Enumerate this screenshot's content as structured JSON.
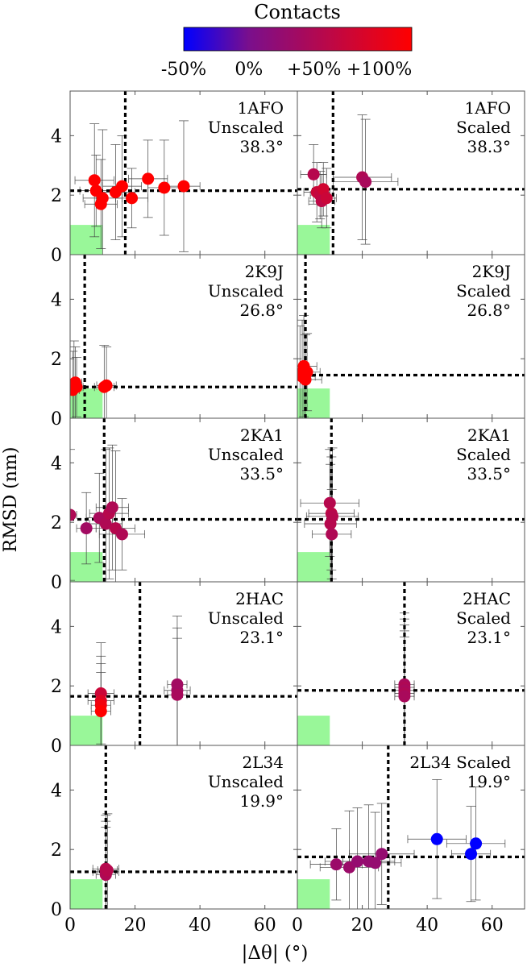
{
  "colorbar": {
    "title": "Contacts",
    "tick_labels": [
      "-50%",
      "0%",
      "+50%",
      "+100%"
    ],
    "tick_values": [
      -50,
      0,
      50,
      100
    ],
    "range": [
      -50,
      125
    ],
    "colors": [
      "#0000ff",
      "#7a0f8c",
      "#ff0000"
    ]
  },
  "axes": {
    "xlabel": "|Δθ| (°)",
    "ylabel": "RMSD (nm)",
    "x_ticks": [
      0,
      20,
      40,
      60
    ],
    "y_ticks": [
      0,
      2,
      4
    ],
    "xlim": [
      0,
      70
    ],
    "ylim": [
      0,
      5.5
    ]
  },
  "chart_data": [
    {
      "type": "scatter",
      "label": [
        "1AFO",
        "Unscaled",
        "38.3°"
      ],
      "vline": 17,
      "hline": 2.15,
      "points": [
        {
          "x": 7.5,
          "y": 2.5,
          "c": 100,
          "xe": 6,
          "ye": 1.9
        },
        {
          "x": 8,
          "y": 2.15,
          "c": 100,
          "xe": 5,
          "ye": 1.2
        },
        {
          "x": 9.5,
          "y": 1.7,
          "c": 100,
          "xe": 5,
          "ye": 1.5
        },
        {
          "x": 10,
          "y": 1.9,
          "c": 100,
          "xe": 6,
          "ye": 2.3
        },
        {
          "x": 14,
          "y": 2.1,
          "c": 100,
          "xe": 6,
          "ye": 1.6
        },
        {
          "x": 16,
          "y": 2.3,
          "c": 100,
          "xe": 6,
          "ye": 1.7
        },
        {
          "x": 19,
          "y": 1.9,
          "c": 100,
          "xe": 5,
          "ye": 1.0
        },
        {
          "x": 24,
          "y": 2.55,
          "c": 100,
          "xe": 6,
          "ye": 1.3
        },
        {
          "x": 29,
          "y": 2.25,
          "c": 100,
          "xe": 5,
          "ye": 1.6
        },
        {
          "x": 35,
          "y": 2.3,
          "c": 100,
          "xe": 5,
          "ye": 2.2
        }
      ]
    },
    {
      "type": "scatter",
      "label": [
        "1AFO",
        "Scaled",
        "38.3°"
      ],
      "vline": 11,
      "hline": 2.2,
      "points": [
        {
          "x": 5,
          "y": 2.7,
          "c": 45,
          "xe": 4,
          "ye": 1.0
        },
        {
          "x": 6,
          "y": 2.1,
          "c": 60,
          "xe": 4,
          "ye": 1.0
        },
        {
          "x": 7,
          "y": 2.0,
          "c": 55,
          "xe": 3,
          "ye": 0.8
        },
        {
          "x": 7.5,
          "y": 1.8,
          "c": 50,
          "xe": 4,
          "ye": 0.9
        },
        {
          "x": 8,
          "y": 2.2,
          "c": 65,
          "xe": 3,
          "ye": 0.9
        },
        {
          "x": 9,
          "y": 1.9,
          "c": 60,
          "xe": 3,
          "ye": 1.0
        },
        {
          "x": 20,
          "y": 2.6,
          "c": 40,
          "xe": 9,
          "ye": 2.1
        },
        {
          "x": 21,
          "y": 2.45,
          "c": 35,
          "xe": 10,
          "ye": 2.1
        }
      ]
    },
    {
      "type": "scatter",
      "label": [
        "2K9J",
        "Unscaled",
        "26.8°"
      ],
      "vline": 4.5,
      "hline": 1.05,
      "points": [
        {
          "x": 0.8,
          "y": 0.95,
          "c": 100,
          "xe": 2,
          "ye": 1.3
        },
        {
          "x": 1.2,
          "y": 1.1,
          "c": 100,
          "xe": 2,
          "ye": 1.5
        },
        {
          "x": 1.6,
          "y": 1.2,
          "c": 100,
          "xe": 2,
          "ye": 1.2
        },
        {
          "x": 2.0,
          "y": 1.05,
          "c": 100,
          "xe": 2,
          "ye": 1.0
        },
        {
          "x": 10.5,
          "y": 1.05,
          "c": 100,
          "xe": 3,
          "ye": 1.4
        },
        {
          "x": 11.2,
          "y": 1.1,
          "c": 100,
          "xe": 3,
          "ye": 1.3
        }
      ]
    },
    {
      "type": "scatter",
      "label": [
        "2K9J",
        "Scaled",
        "26.8°"
      ],
      "vline": 2.5,
      "hline": 1.45,
      "points": [
        {
          "x": 0.8,
          "y": 1.5,
          "c": 100,
          "xe": 3,
          "ye": 1.6
        },
        {
          "x": 1.5,
          "y": 1.4,
          "c": 100,
          "xe": 4,
          "ye": 1.9
        },
        {
          "x": 2.0,
          "y": 1.75,
          "c": 100,
          "xe": 4,
          "ye": 1.7
        },
        {
          "x": 2.5,
          "y": 1.3,
          "c": 100,
          "xe": 5,
          "ye": 1.5
        },
        {
          "x": 3.0,
          "y": 1.55,
          "c": 100,
          "xe": 4,
          "ye": 1.3
        }
      ]
    },
    {
      "type": "scatter",
      "label": [
        "2KA1",
        "Unscaled",
        "33.5°"
      ],
      "vline": 10.5,
      "hline": 2.1,
      "points": [
        {
          "x": 0,
          "y": 2.25,
          "c": 40,
          "xe": 2,
          "ye": 2.2
        },
        {
          "x": 5,
          "y": 1.8,
          "c": 30,
          "xe": 3,
          "ye": 1.2
        },
        {
          "x": 9,
          "y": 2.15,
          "c": 35,
          "xe": 4,
          "ye": 1.5
        },
        {
          "x": 11,
          "y": 1.95,
          "c": 40,
          "xe": 5,
          "ye": 2.5
        },
        {
          "x": 12,
          "y": 2.3,
          "c": 45,
          "xe": 6,
          "ye": 2.2
        },
        {
          "x": 13,
          "y": 2.5,
          "c": 40,
          "xe": 5,
          "ye": 2.1
        },
        {
          "x": 14,
          "y": 1.8,
          "c": 45,
          "xe": 6,
          "ye": 2.6
        },
        {
          "x": 16,
          "y": 1.6,
          "c": 40,
          "xe": 7,
          "ye": 1.2
        }
      ]
    },
    {
      "type": "scatter",
      "label": [
        "2KA1",
        "Scaled",
        "33.5°"
      ],
      "vline": 10.5,
      "hline": 2.1,
      "points": [
        {
          "x": 10,
          "y": 2.65,
          "c": 45,
          "xe": 9,
          "ye": 1.8
        },
        {
          "x": 10.2,
          "y": 1.95,
          "c": 45,
          "xe": 8,
          "ye": 2.0
        },
        {
          "x": 10.5,
          "y": 2.3,
          "c": 50,
          "xe": 7,
          "ye": 1.9
        },
        {
          "x": 10.6,
          "y": 1.6,
          "c": 40,
          "xe": 6,
          "ye": 1.5
        },
        {
          "x": 10.8,
          "y": 2.2,
          "c": 45,
          "xe": 8,
          "ye": 2.3
        }
      ]
    },
    {
      "type": "scatter",
      "label": [
        "2HAC",
        "Unscaled",
        "23.1°"
      ],
      "vline": 21.5,
      "hline": 1.65,
      "points": [
        {
          "x": 9.5,
          "y": 1.75,
          "c": 60,
          "xe": 4,
          "ye": 1.7
        },
        {
          "x": 9.5,
          "y": 1.5,
          "c": 75,
          "xe": 4,
          "ye": 1.5
        },
        {
          "x": 9.5,
          "y": 1.35,
          "c": 90,
          "xe": 3,
          "ye": 1.4
        },
        {
          "x": 9.5,
          "y": 1.15,
          "c": 100,
          "xe": 3,
          "ye": 1.3
        },
        {
          "x": 33,
          "y": 2.05,
          "c": 30,
          "xe": 3,
          "ye": 2.3
        },
        {
          "x": 33,
          "y": 1.85,
          "c": 30,
          "xe": 4,
          "ye": 2.1
        },
        {
          "x": 33,
          "y": 1.7,
          "c": 35,
          "xe": 3,
          "ye": 1.9
        }
      ]
    },
    {
      "type": "scatter",
      "label": [
        "2HAC",
        "Scaled",
        "23.1°"
      ],
      "vline": 33,
      "hline": 1.85,
      "points": [
        {
          "x": 33,
          "y": 2.05,
          "c": 35,
          "xe": 3,
          "ye": 2.4
        },
        {
          "x": 33,
          "y": 1.95,
          "c": 40,
          "xe": 3,
          "ye": 2.3
        },
        {
          "x": 33,
          "y": 1.85,
          "c": 35,
          "xe": 3,
          "ye": 2.2
        },
        {
          "x": 33,
          "y": 1.75,
          "c": 40,
          "xe": 3,
          "ye": 2.1
        },
        {
          "x": 33,
          "y": 1.65,
          "c": 35,
          "xe": 3,
          "ye": 2.0
        }
      ]
    },
    {
      "type": "scatter",
      "label": [
        "2L34",
        "Unscaled",
        "19.9°"
      ],
      "vline": 11,
      "hline": 1.25,
      "points": [
        {
          "x": 11,
          "y": 1.35,
          "c": 45,
          "xe": 4,
          "ye": 1.8
        },
        {
          "x": 11,
          "y": 1.25,
          "c": 45,
          "xe": 4,
          "ye": 1.7
        },
        {
          "x": 11,
          "y": 1.15,
          "c": 40,
          "xe": 3,
          "ye": 1.6
        },
        {
          "x": 11.5,
          "y": 1.3,
          "c": 45,
          "xe": 3,
          "ye": 1.9
        }
      ]
    },
    {
      "type": "scatter",
      "label": [
        "2L34 Scaled",
        "19.9°"
      ],
      "vline": 28,
      "hline": 1.75,
      "points": [
        {
          "x": 12,
          "y": 1.5,
          "c": 25,
          "xe": 8,
          "ye": 1.2
        },
        {
          "x": 16,
          "y": 1.4,
          "c": 25,
          "xe": 9,
          "ye": 1.9
        },
        {
          "x": 18.5,
          "y": 1.6,
          "c": 20,
          "xe": 10,
          "ye": 1.8
        },
        {
          "x": 22,
          "y": 1.6,
          "c": 20,
          "xe": 8,
          "ye": 1.9
        },
        {
          "x": 24,
          "y": 1.55,
          "c": 20,
          "xe": 8,
          "ye": 1.7
        },
        {
          "x": 26,
          "y": 1.85,
          "c": 20,
          "xe": 10,
          "ye": 1.7
        },
        {
          "x": 43,
          "y": 2.35,
          "c": -50,
          "xe": 9,
          "ye": 2.0
        },
        {
          "x": 53.5,
          "y": 1.85,
          "c": -50,
          "xe": 6,
          "ye": 1.6
        },
        {
          "x": 55,
          "y": 2.2,
          "c": -50,
          "xe": 9,
          "ye": 1.9
        }
      ]
    }
  ]
}
